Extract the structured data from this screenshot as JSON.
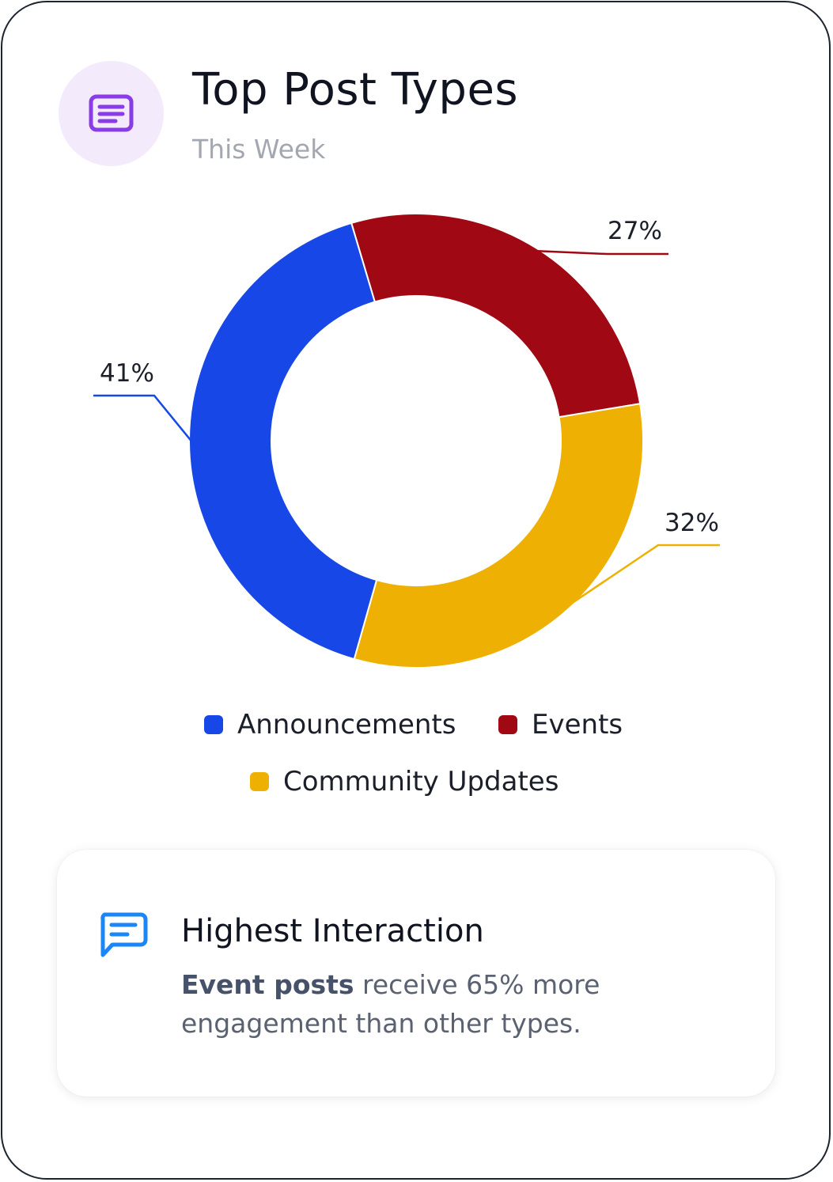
{
  "header": {
    "icon": "article-icon",
    "title": "Top Post Types",
    "subtitle": "This Week"
  },
  "colors": {
    "accent_purple": "#8a3ce6",
    "accent_purple_bg": "#f3ebfc",
    "announcements": "#1747e6",
    "events": "#a00914",
    "community_updates": "#eeb103",
    "insight_icon": "#1b86f5"
  },
  "chart_data": {
    "type": "donut",
    "categories": [
      "Announcements",
      "Events",
      "Community Updates"
    ],
    "values": [
      41,
      27,
      32
    ],
    "labels": [
      "41%",
      "27%",
      "32%"
    ],
    "colors": [
      "#1747e6",
      "#a00914",
      "#eeb103"
    ],
    "legend_position": "bottom"
  },
  "legend": {
    "items": [
      {
        "label": "Announcements",
        "color": "#1747e6"
      },
      {
        "label": "Events",
        "color": "#a00914"
      },
      {
        "label": "Community Updates",
        "color": "#eeb103"
      }
    ]
  },
  "insight": {
    "icon": "chat-message-icon",
    "title": "Highest Interaction",
    "highlight": "Event posts",
    "text": " receive 65% more engagement than other types."
  }
}
